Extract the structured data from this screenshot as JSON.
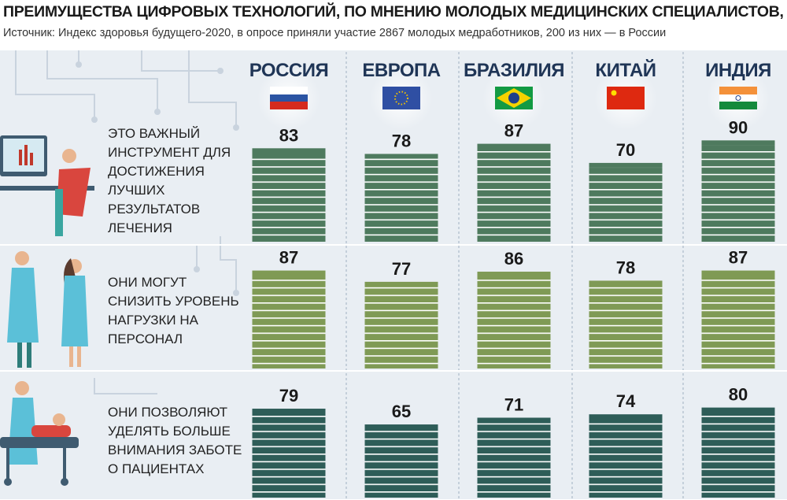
{
  "chart_data": {
    "type": "bar",
    "title": "ПРЕИМУЩЕСТВА ЦИФРОВЫХ ТЕХНОЛОГИЙ, ПО МНЕНИЮ МОЛОДЫХ МЕДИЦИНСКИХ СПЕЦИАЛИСТОВ, %",
    "subtitle": "Источник: Индекс здоровья будущего-2020, в опросе приняли участие 2867 молодых медработников, 200 из них — в России",
    "categories": [
      "РОССИЯ",
      "ЕВРОПА",
      "БРАЗИЛИЯ",
      "КИТАЙ",
      "ИНДИЯ"
    ],
    "series": [
      {
        "name": "ЭТО ВАЖНЫЙ ИНСТРУМЕНТ ДЛЯ ДОСТИЖЕНИЯ ЛУЧШИХ РЕЗУЛЬТАТОВ ЛЕЧЕНИЯ",
        "color": "#4e7a5e",
        "values": [
          83,
          78,
          87,
          70,
          90
        ]
      },
      {
        "name": "ОНИ МОГУТ СНИЗИТЬ УРОВЕНЬ НАГРУЗКИ НА ПЕРСОНАЛ",
        "color": "#7f9a55",
        "values": [
          87,
          77,
          86,
          78,
          87
        ]
      },
      {
        "name": "ОНИ ПОЗВОЛЯЮТ УДЕЛЯТЬ БОЛЬШЕ ВНИМАНИЯ ЗАБОТЕ О ПАЦИЕНТАХ",
        "color": "#2e5d58",
        "values": [
          79,
          65,
          71,
          74,
          80
        ]
      }
    ]
  }
}
